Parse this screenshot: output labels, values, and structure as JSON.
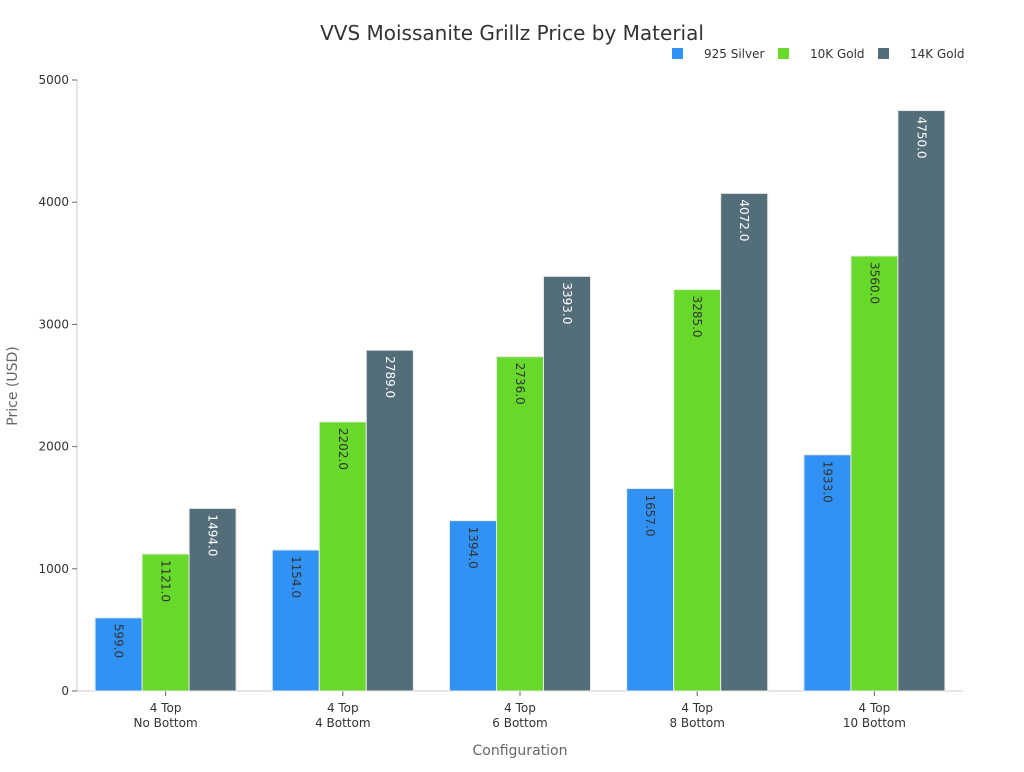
{
  "chart_data": {
    "type": "bar",
    "title": "VVS Moissanite Grillz Price by Material",
    "xlabel": "Configuration",
    "ylabel": "Price (USD)",
    "ylim": [
      0,
      5000
    ],
    "yticks": [
      0,
      1000,
      2000,
      3000,
      4000,
      5000
    ],
    "grid": false,
    "legend_position": "top-right",
    "categories": [
      [
        "4 Top",
        "No Bottom"
      ],
      [
        "4 Top",
        "4 Bottom"
      ],
      [
        "4 Top",
        "6 Bottom"
      ],
      [
        "4 Top",
        "8 Bottom"
      ],
      [
        "4 Top",
        "10 Bottom"
      ]
    ],
    "series": [
      {
        "name": "925 Silver",
        "color": "#3192f5",
        "label_color": "#333333",
        "values": [
          599.0,
          1154.0,
          1394.0,
          1657.0,
          1933.0
        ]
      },
      {
        "name": "10K Gold",
        "color": "#66d92b",
        "label_color": "#333333",
        "values": [
          1121.0,
          2202.0,
          2736.0,
          3285.0,
          3560.0
        ]
      },
      {
        "name": "14K Gold",
        "color": "#536d79",
        "label_color": "#ffffff",
        "values": [
          1494.0,
          2789.0,
          3393.0,
          4072.0,
          4750.0
        ]
      }
    ]
  }
}
